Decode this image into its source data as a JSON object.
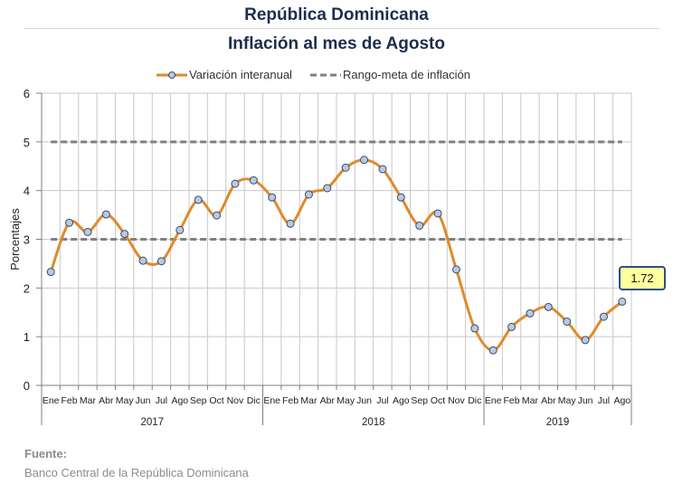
{
  "header": {
    "title": "República Dominicana",
    "subtitle": "Inflación al mes de Agosto"
  },
  "legend": {
    "series_label": "Variación interanual",
    "band_label": "Rango-meta de inflación"
  },
  "callout_value": "1.72",
  "footer": {
    "heading": "Fuente:",
    "source": "Banco Central de la República Dominicana"
  },
  "colors": {
    "series": "#e08a2c",
    "band": "#808080",
    "marker_fill": "#b9c9df",
    "marker_stroke": "#3a4a6b",
    "title": "#1f2d4d",
    "callout_fill": "#ffff9e",
    "callout_border": "#2d4f8b"
  },
  "chart_data": {
    "type": "line",
    "ylabel": "Porcentajes",
    "ylim": [
      0,
      6
    ],
    "yticks": [
      0,
      1,
      2,
      3,
      4,
      5,
      6
    ],
    "grid": true,
    "legend_position": "top",
    "categories": [
      "Ene",
      "Feb",
      "Mar",
      "Abr",
      "May",
      "Jun",
      "Jul",
      "Ago",
      "Sep",
      "Oct",
      "Nov",
      "Dic",
      "Ene",
      "Feb",
      "Mar",
      "Abr",
      "May",
      "Jun",
      "Jul",
      "Ago",
      "Sep",
      "Oct",
      "Nov",
      "Dic",
      "Ene",
      "Feb",
      "Mar",
      "Abr",
      "May",
      "Jun",
      "Jul",
      "Ago"
    ],
    "year_groups": [
      {
        "label": "2017",
        "count": 12
      },
      {
        "label": "2018",
        "count": 12
      },
      {
        "label": "2019",
        "count": 8
      }
    ],
    "series": [
      {
        "name": "Variación interanual",
        "values": [
          2.33,
          3.34,
          3.15,
          3.51,
          3.11,
          2.56,
          2.55,
          3.19,
          3.81,
          3.49,
          4.14,
          4.21,
          3.86,
          3.32,
          3.92,
          4.05,
          4.47,
          4.63,
          4.44,
          3.86,
          3.28,
          3.53,
          2.38,
          1.17,
          0.72,
          1.2,
          1.48,
          1.61,
          1.31,
          0.93,
          1.41,
          1.72
        ]
      }
    ],
    "target_band": {
      "name": "Rango-meta de inflación",
      "lower": 3,
      "upper": 5
    }
  }
}
